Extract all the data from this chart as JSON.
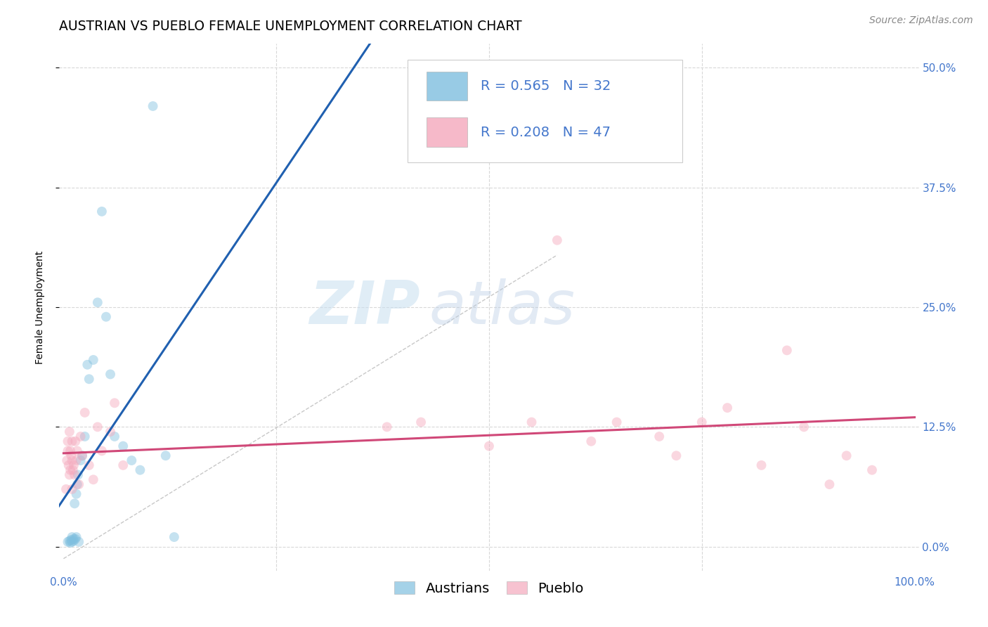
{
  "title": "AUSTRIAN VS PUEBLO FEMALE UNEMPLOYMENT CORRELATION CHART",
  "source": "Source: ZipAtlas.com",
  "ylabel": "Female Unemployment",
  "watermark_zip": "ZIP",
  "watermark_atlas": "atlas",
  "xmin": 0.0,
  "xmax": 1.0,
  "ymin": -0.025,
  "ymax": 0.525,
  "yticks": [
    0.0,
    0.125,
    0.25,
    0.375,
    0.5
  ],
  "ytick_labels": [
    "0.0%",
    "12.5%",
    "25.0%",
    "37.5%",
    "50.0%"
  ],
  "xtick_labels": [
    "0.0%",
    "",
    "",
    "",
    "100.0%"
  ],
  "austrians_x": [
    0.005,
    0.007,
    0.008,
    0.009,
    0.01,
    0.01,
    0.012,
    0.012,
    0.013,
    0.014,
    0.015,
    0.015,
    0.016,
    0.017,
    0.018,
    0.02,
    0.022,
    0.025,
    0.028,
    0.03,
    0.035,
    0.04,
    0.045,
    0.05,
    0.055,
    0.06,
    0.07,
    0.08,
    0.09,
    0.105,
    0.12,
    0.13
  ],
  "austrians_y": [
    0.005,
    0.006,
    0.004,
    0.007,
    0.005,
    0.01,
    0.008,
    0.006,
    0.045,
    0.008,
    0.01,
    0.055,
    0.065,
    0.075,
    0.005,
    0.09,
    0.095,
    0.115,
    0.19,
    0.175,
    0.195,
    0.255,
    0.35,
    0.24,
    0.18,
    0.115,
    0.105,
    0.09,
    0.08,
    0.46,
    0.095,
    0.01
  ],
  "pueblo_x": [
    0.003,
    0.004,
    0.005,
    0.005,
    0.006,
    0.007,
    0.007,
    0.008,
    0.008,
    0.009,
    0.01,
    0.01,
    0.01,
    0.011,
    0.012,
    0.013,
    0.014,
    0.015,
    0.016,
    0.018,
    0.02,
    0.022,
    0.025,
    0.03,
    0.035,
    0.04,
    0.045,
    0.055,
    0.06,
    0.07,
    0.38,
    0.42,
    0.5,
    0.55,
    0.58,
    0.62,
    0.65,
    0.7,
    0.72,
    0.75,
    0.78,
    0.82,
    0.85,
    0.87,
    0.9,
    0.92,
    0.95
  ],
  "pueblo_y": [
    0.06,
    0.09,
    0.1,
    0.11,
    0.085,
    0.075,
    0.12,
    0.1,
    0.08,
    0.095,
    0.06,
    0.09,
    0.11,
    0.08,
    0.085,
    0.075,
    0.11,
    0.09,
    0.1,
    0.065,
    0.115,
    0.095,
    0.14,
    0.085,
    0.07,
    0.125,
    0.1,
    0.12,
    0.15,
    0.085,
    0.125,
    0.13,
    0.105,
    0.13,
    0.32,
    0.11,
    0.13,
    0.115,
    0.095,
    0.13,
    0.145,
    0.085,
    0.205,
    0.125,
    0.065,
    0.095,
    0.08
  ],
  "austrians_color": "#7fbfdf",
  "pueblo_color": "#f4a8bc",
  "regression_austrians_color": "#2060b0",
  "regression_pueblo_color": "#d04878",
  "diagonal_color": "#c8c8c8",
  "grid_color": "#d8d8d8",
  "tick_color": "#4477cc",
  "title_fontsize": 13.5,
  "axis_label_fontsize": 10,
  "tick_label_fontsize": 11,
  "legend_fontsize": 14,
  "source_fontsize": 10,
  "scatter_size": 100,
  "scatter_alpha": 0.45,
  "reg_linewidth": 2.2,
  "reg_austrians_xstart": -0.02,
  "reg_austrians_xend": 0.6,
  "reg_pueblo_xstart": 0.0,
  "reg_pueblo_xend": 1.0
}
